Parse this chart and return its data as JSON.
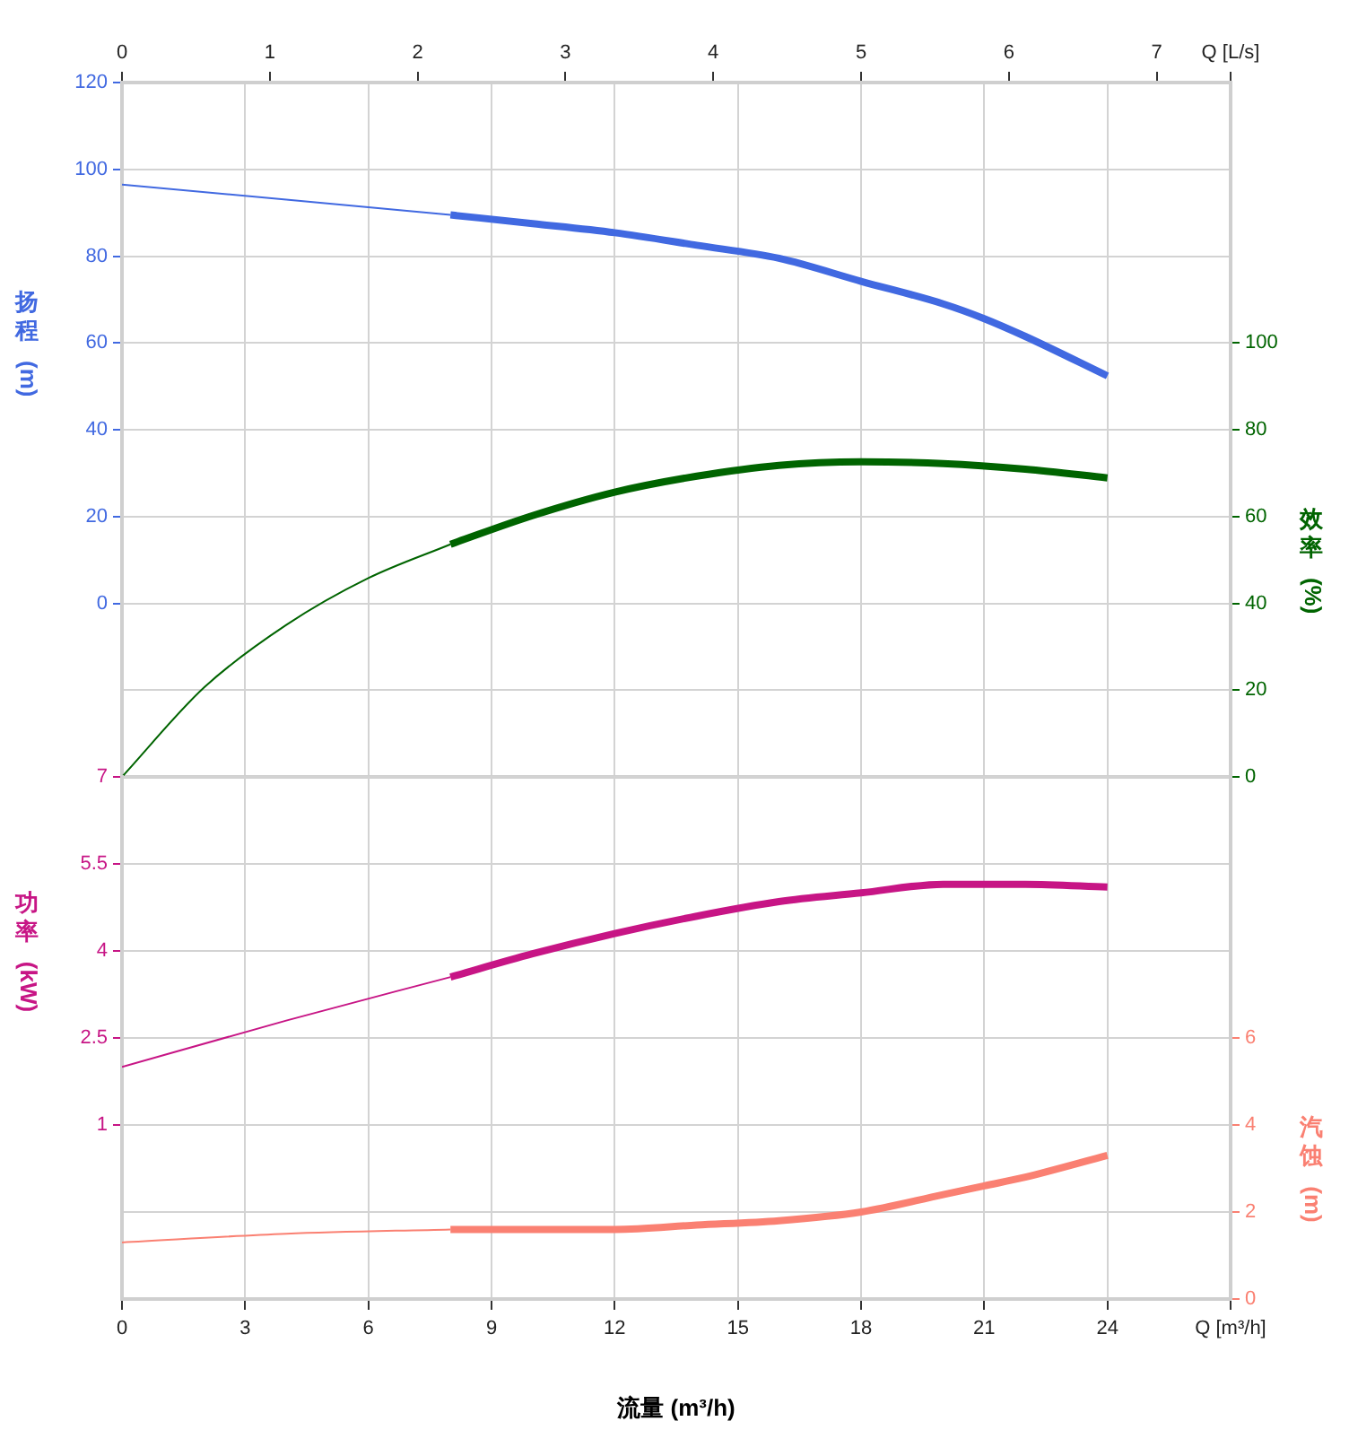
{
  "chart_data": [
    {
      "type": "line",
      "ylabel": "扬程 (m)",
      "y2label": "效率 (%)",
      "xlim": [
        0,
        27
      ],
      "xticks": [
        0,
        3,
        6,
        9,
        12,
        15,
        18,
        21,
        24,
        27
      ],
      "x2lim": [
        0,
        7.5
      ],
      "x2ticks": [
        0,
        1,
        2,
        3,
        4,
        5,
        6,
        7,
        {
          "value": 7.5,
          "label": "Q [L/s]"
        }
      ],
      "ylim": [
        -40,
        120
      ],
      "yticks": [
        0,
        20,
        40,
        60,
        80,
        100,
        120
      ],
      "y2lim": [
        0,
        160
      ],
      "y2ticks": [
        0,
        20,
        40,
        60,
        80,
        100
      ],
      "tick_labels": "y",
      "grid": true,
      "legend": false,
      "marker": "none",
      "line_style": "solid",
      "series": [
        {
          "color": "#4169e1",
          "x": [
            0,
            4,
            8
          ],
          "values": [
            96.5,
            93,
            89.5
          ]
        },
        {
          "color": "#4169e1",
          "x": [
            8,
            10,
            12,
            14,
            16,
            18,
            20,
            21,
            22,
            24
          ],
          "values": [
            89.5,
            87.5,
            85.4,
            82.5,
            79.5,
            74.2,
            69,
            65.6,
            61.5,
            52.4
          ]
        },
        {
          "axis": "y2",
          "color": "#006400",
          "x": [
            0,
            2,
            4,
            6,
            8
          ],
          "values": [
            0,
            20.6,
            35,
            45.8,
            53.6
          ]
        },
        {
          "axis": "y2",
          "color": "#006400",
          "x": [
            8,
            10,
            12,
            14,
            16,
            18,
            20,
            22,
            24
          ],
          "values": [
            53.6,
            60.2,
            65.6,
            69.3,
            71.8,
            72.6,
            72.2,
            70.9,
            68.9
          ]
        }
      ]
    },
    {
      "type": "line",
      "xlabel": "流量 (m³/h)",
      "ylabel": "功率 (kW)",
      "y2label": "汽蚀 (m)",
      "xlim": [
        0,
        27
      ],
      "xticks": [
        0,
        3,
        6,
        9,
        12,
        15,
        18,
        21,
        24,
        {
          "value": 27,
          "label": "Q [m³/h]"
        }
      ],
      "ylim": [
        -2,
        7
      ],
      "yticks": [
        1,
        2.5,
        4,
        5.5,
        7
      ],
      "y2lim": [
        0,
        12
      ],
      "y2ticks": [
        0,
        2,
        4,
        6
      ],
      "grid": true,
      "legend": false,
      "marker": "none",
      "line_style": "solid",
      "series": [
        {
          "color": "#c71585",
          "x": [
            0,
            4,
            8
          ],
          "values": [
            2.0,
            2.8,
            3.55
          ]
        },
        {
          "color": "#c71585",
          "x": [
            8,
            10,
            12,
            14,
            16,
            18,
            20,
            21,
            22,
            24
          ],
          "values": [
            3.55,
            3.95,
            4.3,
            4.6,
            4.85,
            5.0,
            5.15,
            5.15,
            5.15,
            5.1
          ]
        },
        {
          "axis": "y2",
          "color": "#fa8072",
          "x": [
            0,
            4,
            8
          ],
          "values": [
            1.3,
            1.5,
            1.6
          ]
        },
        {
          "axis": "y2",
          "color": "#fa8072",
          "x": [
            8,
            10,
            12,
            14,
            16,
            18,
            20,
            21,
            22,
            24
          ],
          "values": [
            1.6,
            1.6,
            1.6,
            1.7,
            1.8,
            2.0,
            2.4,
            2.6,
            2.8,
            3.3
          ]
        }
      ]
    }
  ]
}
